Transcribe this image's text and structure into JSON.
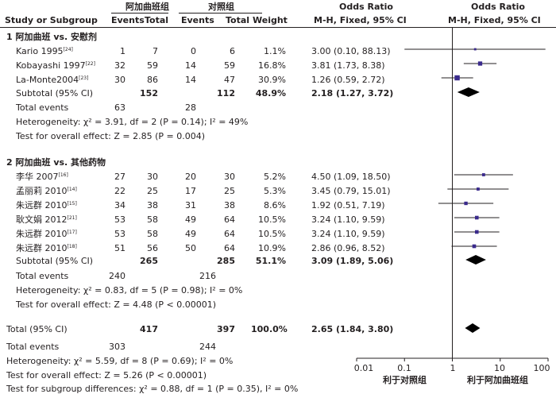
{
  "header": {
    "group1": "阿加曲班组",
    "group2": "对照组",
    "or_title": "Odds Ratio",
    "study_col": "Study or Subgroup",
    "events": "Events",
    "total": "Total",
    "weight": "Weight",
    "method": "M-H, Fixed, 95% CI"
  },
  "subgroups": [
    {
      "title": "1 阿加曲班 vs. 安慰剂",
      "studies": [
        {
          "name": "Kario 1995",
          "ref": "[24]",
          "e1": "1",
          "t1": "7",
          "e2": "0",
          "t2": "6",
          "weight": "1.1%",
          "ci": "3.00 (0.10, 88.13)"
        },
        {
          "name": "Kobayashi 1997",
          "ref": "[22]",
          "e1": "32",
          "t1": "59",
          "e2": "14",
          "t2": "59",
          "weight": "16.8%",
          "ci": "3.81 (1.73, 8.38)"
        },
        {
          "name": "La-Monte2004",
          "ref": "[23]",
          "e1": "30",
          "t1": "86",
          "e2": "14",
          "t2": "47",
          "weight": "30.9%",
          "ci": "1.26 (0.59, 2.72)"
        }
      ],
      "subtotal": {
        "label": "Subtotal (95% CI)",
        "t1": "152",
        "t2": "112",
        "weight": "48.9%",
        "ci": "2.18 (1.27, 3.72)"
      },
      "total_events": {
        "label": "Total events",
        "e1": "63",
        "e2": "28"
      },
      "heterogeneity": "Heterogeneity: χ² = 3.91, df = 2 (P = 0.14); I² = 49%",
      "overall": "Test for overall effect: Z = 2.85 (P = 0.004)"
    },
    {
      "title": "2 阿加曲班 vs. 其他药物",
      "studies": [
        {
          "name": "李华 2007",
          "ref": "[16]",
          "e1": "27",
          "t1": "30",
          "e2": "20",
          "t2": "30",
          "weight": "5.2%",
          "ci": "4.50 (1.09, 18.50)"
        },
        {
          "name": "孟丽莉 2010",
          "ref": "[14]",
          "e1": "22",
          "t1": "25",
          "e2": "17",
          "t2": "25",
          "weight": "5.3%",
          "ci": "3.45 (0.79, 15.01)"
        },
        {
          "name": "朱远群 2010",
          "ref": "[15]",
          "e1": "34",
          "t1": "38",
          "e2": "31",
          "t2": "38",
          "weight": "8.6%",
          "ci": "1.92 (0.51, 7.19)"
        },
        {
          "name": "耿文娟 2012",
          "ref": "[21]",
          "e1": "53",
          "t1": "58",
          "e2": "49",
          "t2": "64",
          "weight": "10.5%",
          "ci": "3.24 (1.10, 9.59)"
        },
        {
          "name": "朱远群 2010",
          "ref": "[17]",
          "e1": "53",
          "t1": "58",
          "e2": "49",
          "t2": "64",
          "weight": "10.5%",
          "ci": "3.24 (1.10, 9.59)"
        },
        {
          "name": "朱远群 2010",
          "ref": "[18]",
          "e1": "51",
          "t1": "56",
          "e2": "50",
          "t2": "64",
          "weight": "10.9%",
          "ci": "2.86 (0.96, 8.52)"
        }
      ],
      "subtotal": {
        "label": "Subtotal (95% CI)",
        "t1": "265",
        "t2": "285",
        "weight": "51.1%",
        "ci": "3.09 (1.89, 5.06)"
      },
      "total_events": {
        "label": "Total events",
        "e1": "240",
        "e2": "216"
      },
      "heterogeneity": "Heterogeneity: χ² = 0.83, df = 5 (P = 0.98); I² = 0%",
      "overall": "Test for overall effect: Z = 4.48 (P < 0.00001)"
    }
  ],
  "total": {
    "label": "Total (95% CI)",
    "t1": "417",
    "t2": "397",
    "weight": "100.0%",
    "ci": "2.65 (1.84, 3.80)"
  },
  "total_events": {
    "label": "Total events",
    "e1": "303",
    "e2": "244"
  },
  "footer": {
    "heterogeneity": "Heterogeneity: χ² = 5.59, df = 8 (P = 0.69); I² = 0%",
    "overall": "Test for overall effect: Z = 5.26 (P < 0.00001)",
    "subgroup": "Test for subgroup differences: χ² = 0.88, df = 1 (P = 0.35), I² = 0%"
  },
  "axis": {
    "ticks": [
      "0.01",
      "0.1",
      "1",
      "10",
      "100"
    ],
    "favours_left": "利于对照组",
    "favours_right": "利于阿加曲班组"
  },
  "chart_data": {
    "type": "forest",
    "title": "Odds Ratio M-H, Fixed, 95% CI",
    "x_scale": "log",
    "xlim": [
      0.01,
      100
    ],
    "studies": [
      {
        "name": "Kario 1995",
        "or": 3.0,
        "lo": 0.1,
        "hi": 88.13,
        "weight": 1.1
      },
      {
        "name": "Kobayashi 1997",
        "or": 3.81,
        "lo": 1.73,
        "hi": 8.38,
        "weight": 16.8
      },
      {
        "name": "La-Monte2004",
        "or": 1.26,
        "lo": 0.59,
        "hi": 2.72,
        "weight": 30.9
      },
      {
        "name": "李华 2007",
        "or": 4.5,
        "lo": 1.09,
        "hi": 18.5,
        "weight": 5.2
      },
      {
        "name": "孟丽莉 2010",
        "or": 3.45,
        "lo": 0.79,
        "hi": 15.01,
        "weight": 5.3
      },
      {
        "name": "朱远群 2010",
        "or": 1.92,
        "lo": 0.51,
        "hi": 7.19,
        "weight": 8.6
      },
      {
        "name": "耿文娟 2012",
        "or": 3.24,
        "lo": 1.1,
        "hi": 9.59,
        "weight": 10.5
      },
      {
        "name": "朱远群 2010",
        "or": 3.24,
        "lo": 1.1,
        "hi": 9.59,
        "weight": 10.5
      },
      {
        "name": "朱远群 2010",
        "or": 2.86,
        "lo": 0.96,
        "hi": 8.52,
        "weight": 10.9
      }
    ],
    "subtotals": [
      {
        "name": "Subtotal 1",
        "or": 2.18,
        "lo": 1.27,
        "hi": 3.72
      },
      {
        "name": "Subtotal 2",
        "or": 3.09,
        "lo": 1.89,
        "hi": 5.06
      }
    ],
    "overall": {
      "name": "Total",
      "or": 2.65,
      "lo": 1.84,
      "hi": 3.8
    },
    "colors": {
      "marker": "#3a2a8c",
      "line": "#231f20",
      "diamond": "#000000"
    }
  }
}
